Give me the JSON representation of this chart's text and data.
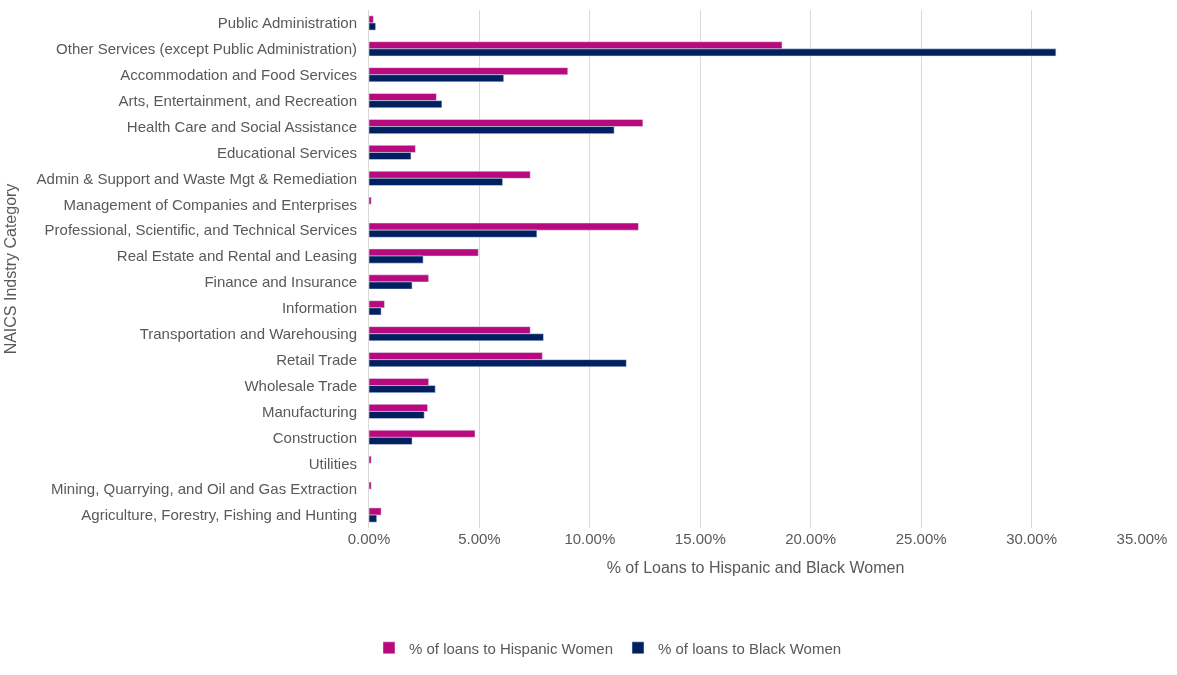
{
  "chart_data": {
    "type": "bar",
    "orientation": "horizontal",
    "xlabel": "% of Loans to Hispanic and Black Women",
    "ylabel": "NAICS Indstry Category",
    "categories": [
      "Public Administration",
      "Other Services (except Public Administration)",
      "Accommodation and Food Services",
      "Arts, Entertainment, and Recreation",
      "Health Care and Social Assistance",
      "Educational Services",
      "Admin & Support and Waste Mgt & Remediation",
      "Management of Companies and Enterprises",
      "Professional, Scientific, and Technical Services",
      "Real Estate and Rental and Leasing",
      "Finance and Insurance",
      "Information",
      "Transportation and Warehousing",
      "Retail Trade",
      "Wholesale Trade",
      "Manufacturing",
      "Construction",
      "Utilities",
      "Mining, Quarrying, and Oil and Gas Extraction",
      "Agriculture, Forestry, Fishing and Hunting"
    ],
    "series": [
      {
        "name": "% of loans to Hispanic Women",
        "color": "#b8097f",
        "values": [
          0.2,
          18.7,
          9.0,
          3.05,
          12.4,
          2.1,
          7.3,
          0.1,
          12.2,
          4.95,
          2.7,
          0.7,
          7.3,
          7.85,
          2.7,
          2.65,
          4.8,
          0.1,
          0.1,
          0.55
        ]
      },
      {
        "name": "% of loans to Black Women",
        "color": "#002060",
        "values": [
          0.3,
          31.1,
          6.1,
          3.3,
          11.1,
          1.9,
          6.05,
          null,
          7.6,
          2.45,
          1.95,
          0.55,
          7.9,
          11.65,
          3.0,
          2.5,
          1.95,
          null,
          null,
          0.35
        ]
      }
    ],
    "xlim": [
      0,
      35
    ],
    "xticks": [
      {
        "value": 0,
        "label": "0.00%"
      },
      {
        "value": 5,
        "label": "5.00%"
      },
      {
        "value": 10,
        "label": "10.00%"
      },
      {
        "value": 15,
        "label": "15.00%"
      },
      {
        "value": 20,
        "label": "20.00%"
      },
      {
        "value": 25,
        "label": "25.00%"
      },
      {
        "value": 30,
        "label": "30.00%"
      },
      {
        "value": 35,
        "label": "35.00%"
      }
    ],
    "grid": "x",
    "legend": "bottom"
  }
}
